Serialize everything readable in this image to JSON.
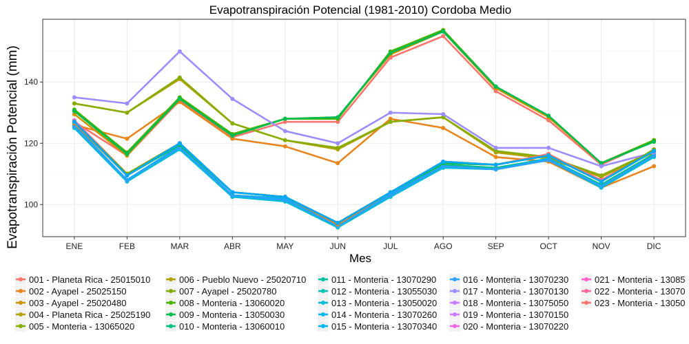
{
  "chart_data": {
    "type": "line",
    "title": "Evapotranspiración Potencial (1981-2010)  Cordoba Medio",
    "xlabel": "Mes",
    "ylabel": "Evapotranspiración Potencial  (mm)",
    "categories": [
      "ENE",
      "FEB",
      "MAR",
      "ABR",
      "MAY",
      "JUN",
      "JUL",
      "AGO",
      "SEP",
      "OCT",
      "NOV",
      "DIC"
    ],
    "ylim": [
      89.5,
      160.5
    ],
    "yticks": [
      100,
      120,
      140
    ],
    "grid": true,
    "legend_position": "bottom",
    "series": [
      {
        "name": "001 - Planeta Rica - 25015010",
        "color": "#F8766D",
        "values": [
          127,
          116,
          134,
          122,
          127,
          127,
          148,
          155,
          137,
          127.5,
          113,
          121
        ]
      },
      {
        "name": "002 - Ayapel - 25025150",
        "color": "#E7851E",
        "values": [
          126,
          121.5,
          133.5,
          121.5,
          119,
          113.5,
          128,
          125,
          115.5,
          114,
          105.5,
          112.5
        ]
      },
      {
        "name": "003 - Ayapel - 25020480",
        "color": "#D09400",
        "values": [
          129.5,
          116,
          134.5,
          122.5,
          128,
          128.5,
          149,
          156.5,
          138,
          128.5,
          113.5,
          121
        ]
      },
      {
        "name": "004 - Planeta Rica - 25025190",
        "color": "#B2A100",
        "values": [
          133,
          130,
          141,
          126.5,
          121,
          118,
          127,
          128.5,
          117,
          115,
          109,
          117
        ]
      },
      {
        "name": "005 - Monteria - 13065020",
        "color": "#89AC00",
        "values": [
          133,
          130,
          141.5,
          126.5,
          121,
          118.5,
          127,
          128.5,
          117.5,
          115.5,
          109.5,
          117.5
        ]
      },
      {
        "name": "006 - Pueblo Nuevo - 25020710",
        "color": "#45B500",
        "values": [
          131,
          117,
          135,
          123,
          128,
          128,
          150,
          157,
          138.5,
          129,
          113.5,
          121
        ]
      },
      {
        "name": "007 - Ayapel - 25020780",
        "color": "#00BC51",
        "values": [
          130.5,
          116.5,
          134.5,
          122.5,
          128,
          128.5,
          149.5,
          156.5,
          138.5,
          129,
          113.5,
          120.5
        ]
      },
      {
        "name": "008 - Monteria - 13060020",
        "color": "#00C087",
        "values": [
          126,
          108,
          119,
          103,
          102,
          93.5,
          103.5,
          113,
          112,
          115,
          106.5,
          116.5
        ]
      },
      {
        "name": "009 - Monteria - 13050030",
        "color": "#00C0B2",
        "values": [
          125.5,
          108,
          118.5,
          102.5,
          101.5,
          93,
          103,
          112.5,
          111.5,
          115,
          106,
          116
        ]
      },
      {
        "name": "010 - Monteria - 13060010",
        "color": "#00BCD6",
        "values": [
          125,
          107.5,
          118,
          102.5,
          101,
          92.5,
          102.5,
          112,
          111.5,
          114.5,
          105.5,
          115.5
        ]
      },
      {
        "name": "011 - Monteria - 13070290",
        "color": "#00B3F2",
        "values": [
          126,
          108,
          119,
          103,
          102,
          93.5,
          103.5,
          112.5,
          111.5,
          115,
          106,
          116
        ]
      },
      {
        "name": "012 - Monteria - 13055030",
        "color": "#29A3FF",
        "values": [
          125.5,
          108,
          118.5,
          103,
          101.5,
          93,
          103,
          112.5,
          111.5,
          114.5,
          106,
          116
        ]
      },
      {
        "name": "013 - Monteria - 13050020",
        "color": "#9C8DFF",
        "values": [
          135,
          133,
          150,
          134.5,
          124,
          120,
          130,
          129.5,
          118.5,
          118.5,
          112.5,
          117
        ]
      },
      {
        "name": "014 - Monteria - 13070260",
        "color": "#D277FF",
        "values": [
          127,
          109.5,
          120,
          104,
          102.5,
          94,
          104,
          113.5,
          113,
          116,
          107.5,
          117.5
        ]
      },
      {
        "name": "015 - Monteria - 13070340",
        "color": "#F166E8",
        "values": [
          127,
          109.5,
          119.5,
          104,
          102.5,
          94,
          104,
          113.5,
          113,
          116,
          107.5,
          117.5
        ]
      },
      {
        "name": "016 - Monteria - 13070230",
        "color": "#FF61C7",
        "values": [
          127.5,
          110,
          120,
          104,
          102.5,
          94,
          104,
          114,
          113,
          116,
          107.5,
          118
        ]
      },
      {
        "name": "017 - Monteria - 13070130",
        "color": "#FF689E",
        "values": [
          127,
          109.5,
          119.5,
          104,
          102.5,
          94,
          104,
          113.5,
          113,
          116,
          108,
          117.5
        ]
      },
      {
        "name": "018 - Monteria - 13075050",
        "color": "#F8766D",
        "values": [
          127,
          110,
          120,
          104,
          102.5,
          94,
          104,
          114,
          113,
          116.5,
          107.5,
          117.5
        ]
      },
      {
        "name": "019 - Monteria - 13070150",
        "color": "#E7861B",
        "values": [
          126.5,
          109.5,
          119.5,
          104,
          102.5,
          93.5,
          104,
          113.5,
          113,
          116,
          107.5,
          117.5
        ]
      },
      {
        "name": "020 - Monteria - 13070220",
        "color": "#C09B00",
        "values": [
          127,
          109.5,
          120,
          104,
          102.5,
          94,
          104,
          113.5,
          113,
          116,
          107.5,
          117.5
        ]
      },
      {
        "name": "021 - Monteria - 13085",
        "color": "#7CAE00",
        "values": [
          127,
          110,
          120,
          104,
          102.5,
          94,
          104,
          114,
          113,
          116,
          107.5,
          118
        ]
      },
      {
        "name": "022 - Monteria - 13070",
        "color": "#00BE67",
        "values": [
          127,
          109.5,
          119.5,
          104,
          102.5,
          94,
          104,
          113.5,
          113,
          116,
          107.5,
          117.5
        ]
      },
      {
        "name": "023 - Monteria - 13050",
        "color": "#00A9FF",
        "values": [
          127,
          109.5,
          120,
          104,
          102.5,
          94,
          104,
          114,
          113,
          116,
          107.5,
          117.5
        ]
      }
    ],
    "legend_columns": [
      [
        {
          "label": "001 - Planeta Rica - 25015010",
          "color": "#F8766D"
        },
        {
          "label": "002 - Ayapel - 25025150",
          "color": "#E7851E"
        },
        {
          "label": "003 - Ayapel - 25020480",
          "color": "#D09400"
        },
        {
          "label": "004 - Planeta Rica - 25025190",
          "color": "#B2A100"
        },
        {
          "label": "005 - Monteria - 13065020",
          "color": "#89AC00"
        }
      ],
      [
        {
          "label": "006 - Pueblo Nuevo - 25020710",
          "color": "#B2A100"
        },
        {
          "label": "007 - Ayapel - 25020780",
          "color": "#7CAE00"
        },
        {
          "label": "008 - Monteria - 13060020",
          "color": "#45B500"
        },
        {
          "label": "009 - Monteria - 13050030",
          "color": "#00BC51"
        },
        {
          "label": "010 - Monteria - 13060010",
          "color": "#00C087"
        }
      ],
      [
        {
          "label": "011 - Monteria - 13070290",
          "color": "#00C0A0"
        },
        {
          "label": "012 - Monteria - 13055030",
          "color": "#00C0B8"
        },
        {
          "label": "013 - Monteria - 13050020",
          "color": "#00BCD6"
        },
        {
          "label": "014 - Monteria - 13070260",
          "color": "#00B6EB"
        },
        {
          "label": "015 - Monteria - 13070340",
          "color": "#00B3F2"
        }
      ],
      [
        {
          "label": "016 - Monteria - 13070230",
          "color": "#29A3FF"
        },
        {
          "label": "017 - Monteria - 13070130",
          "color": "#9C8DFF"
        },
        {
          "label": "018 - Monteria - 13075050",
          "color": "#C77CFF"
        },
        {
          "label": "019 - Monteria - 13070150",
          "color": "#D277FF"
        },
        {
          "label": "020 - Monteria - 13070220",
          "color": "#F166E8"
        }
      ],
      [
        {
          "label": "021 - Monteria - 13085",
          "color": "#FF61C7"
        },
        {
          "label": "022 - Monteria - 13070",
          "color": "#FF689E"
        },
        {
          "label": "023 - Monteria - 13050",
          "color": "#F8766D"
        }
      ]
    ]
  }
}
